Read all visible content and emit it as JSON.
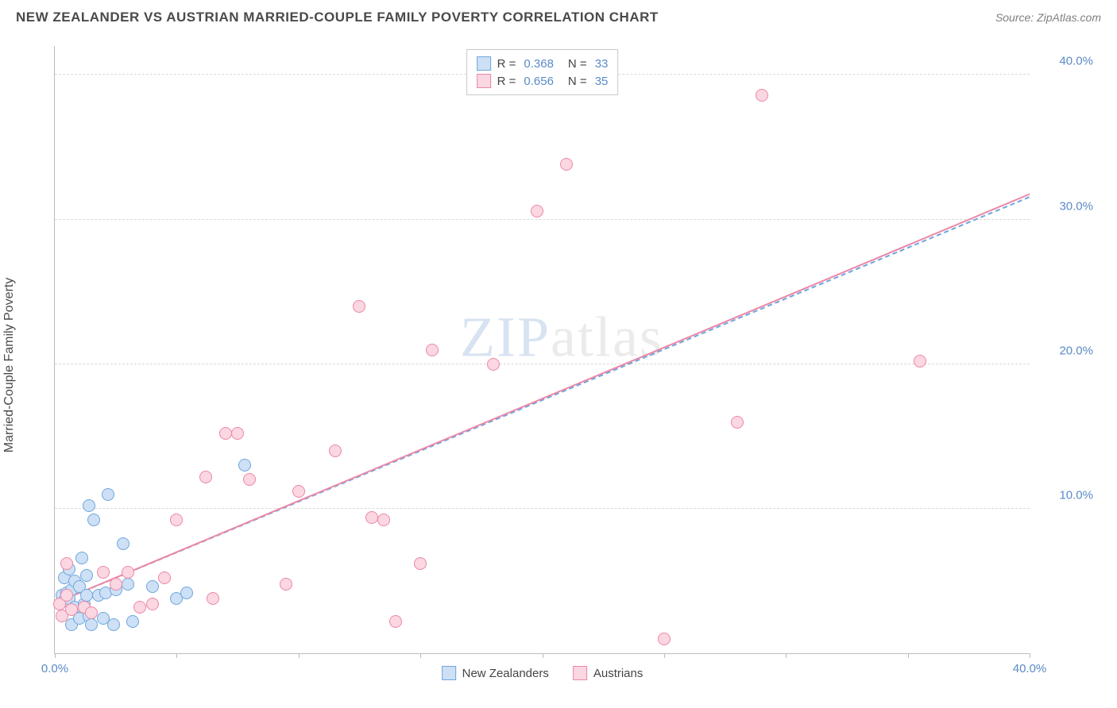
{
  "header": {
    "title": "NEW ZEALANDER VS AUSTRIAN MARRIED-COUPLE FAMILY POVERTY CORRELATION CHART",
    "source": "Source: ZipAtlas.com"
  },
  "watermark": {
    "left": "ZIP",
    "right": "atlas"
  },
  "chart": {
    "type": "scatter",
    "y_axis_label": "Married-Couple Family Poverty",
    "background_color": "#ffffff",
    "grid_color": "#d9d9d9",
    "axis_color": "#bcbcbc",
    "tick_label_color": "#5b8ac6",
    "tick_fontsize": 15,
    "axis_label_fontsize": 16,
    "xlim": [
      0,
      40
    ],
    "ylim": [
      0,
      42
    ],
    "y_ticks": [
      10,
      20,
      30,
      40
    ],
    "y_tick_labels": [
      "10.0%",
      "20.0%",
      "30.0%",
      "40.0%"
    ],
    "x_ticks": [
      0,
      5,
      10,
      15,
      20,
      25,
      30,
      35,
      40
    ],
    "x_tick_labels_shown": {
      "0": "0.0%",
      "40": "40.0%"
    },
    "marker_radius": 8,
    "marker_border_width": 1.5,
    "series": [
      {
        "name": "New Zealanders",
        "fill": "#cde0f5",
        "stroke": "#6fa6de",
        "R": "0.368",
        "N": "33",
        "trend": {
          "color": "#6fa6de",
          "dash": true,
          "x1": 0,
          "y1": 3.5,
          "x2": 40,
          "y2": 31.6
        },
        "points": [
          [
            0.3,
            4.0
          ],
          [
            0.4,
            3.6
          ],
          [
            0.4,
            5.2
          ],
          [
            0.5,
            4.2
          ],
          [
            0.6,
            3.8
          ],
          [
            0.6,
            5.8
          ],
          [
            0.7,
            4.4
          ],
          [
            0.7,
            2.0
          ],
          [
            0.8,
            5.0
          ],
          [
            0.8,
            3.2
          ],
          [
            1.0,
            4.6
          ],
          [
            1.0,
            2.4
          ],
          [
            1.1,
            6.6
          ],
          [
            1.2,
            3.4
          ],
          [
            1.3,
            4.0
          ],
          [
            1.3,
            5.4
          ],
          [
            1.4,
            2.6
          ],
          [
            1.4,
            10.2
          ],
          [
            1.5,
            2.0
          ],
          [
            1.6,
            9.2
          ],
          [
            1.8,
            4.0
          ],
          [
            2.0,
            2.4
          ],
          [
            2.1,
            4.2
          ],
          [
            2.2,
            11.0
          ],
          [
            2.4,
            2.0
          ],
          [
            2.5,
            4.4
          ],
          [
            2.8,
            7.6
          ],
          [
            3.0,
            4.8
          ],
          [
            3.2,
            2.2
          ],
          [
            4.0,
            4.6
          ],
          [
            5.0,
            3.8
          ],
          [
            5.4,
            4.2
          ],
          [
            7.8,
            13.0
          ]
        ]
      },
      {
        "name": "Austrians",
        "fill": "#fbd7e1",
        "stroke": "#ec87a6",
        "R": "0.656",
        "N": "35",
        "trend": {
          "color": "#ec87a6",
          "dash": false,
          "x1": 0,
          "y1": 3.5,
          "x2": 40,
          "y2": 31.8
        },
        "points": [
          [
            0.2,
            3.4
          ],
          [
            0.3,
            2.6
          ],
          [
            0.5,
            6.2
          ],
          [
            0.5,
            4.0
          ],
          [
            0.7,
            3.0
          ],
          [
            1.2,
            3.2
          ],
          [
            1.5,
            2.8
          ],
          [
            2.0,
            5.6
          ],
          [
            2.5,
            4.8
          ],
          [
            3.0,
            5.6
          ],
          [
            3.5,
            3.2
          ],
          [
            4.0,
            3.4
          ],
          [
            4.5,
            5.2
          ],
          [
            5.0,
            9.2
          ],
          [
            6.2,
            12.2
          ],
          [
            6.5,
            3.8
          ],
          [
            7.0,
            15.2
          ],
          [
            7.5,
            15.2
          ],
          [
            8.0,
            12.0
          ],
          [
            9.5,
            4.8
          ],
          [
            10.0,
            11.2
          ],
          [
            11.5,
            14.0
          ],
          [
            12.5,
            24.0
          ],
          [
            13.0,
            9.4
          ],
          [
            13.5,
            9.2
          ],
          [
            14.0,
            2.2
          ],
          [
            15.0,
            6.2
          ],
          [
            15.5,
            21.0
          ],
          [
            18.0,
            20.0
          ],
          [
            19.8,
            30.6
          ],
          [
            21.0,
            33.8
          ],
          [
            25.0,
            1.0
          ],
          [
            28.0,
            16.0
          ],
          [
            29.0,
            38.6
          ],
          [
            35.5,
            20.2
          ]
        ]
      }
    ],
    "legend_top": {
      "R_label": "R =",
      "N_label": "N ="
    },
    "legend_bottom": [
      {
        "label": "New Zealanders",
        "fill": "#cde0f5",
        "stroke": "#6fa6de"
      },
      {
        "label": "Austrians",
        "fill": "#fbd7e1",
        "stroke": "#ec87a6"
      }
    ]
  }
}
